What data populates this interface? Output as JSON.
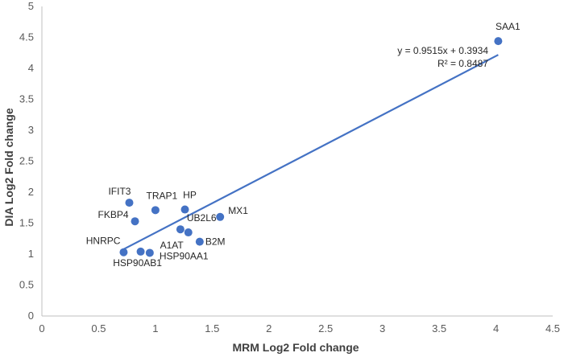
{
  "chart_data": {
    "type": "scatter",
    "xlabel": "MRM Log2 Fold change",
    "ylabel": "DIA Log2 Fold change",
    "xlim": [
      0,
      4.5
    ],
    "ylim": [
      0,
      5
    ],
    "x_ticks": [
      "0",
      "0.5",
      "1",
      "1.5",
      "2",
      "2.5",
      "3",
      "3.5",
      "4",
      "4.5"
    ],
    "y_ticks": [
      "0",
      "0.5",
      "1",
      "1.5",
      "2",
      "2.5",
      "3",
      "3.5",
      "4",
      "4.5",
      "5"
    ],
    "grid": false,
    "marker_color": "#4472C4",
    "trendline_color": "#4472C4",
    "points": [
      {
        "label": "SAA1",
        "x": 4.02,
        "y": 4.44
      },
      {
        "label": "IFIT3",
        "x": 0.77,
        "y": 1.83
      },
      {
        "label": "TRAP1",
        "x": 1.0,
        "y": 1.71
      },
      {
        "label": "HP",
        "x": 1.26,
        "y": 1.72
      },
      {
        "label": "MX1",
        "x": 1.57,
        "y": 1.6
      },
      {
        "label": "FKBP4",
        "x": 0.82,
        "y": 1.53
      },
      {
        "label": "UB2L6",
        "x": 1.22,
        "y": 1.4
      },
      {
        "label": "A1AT",
        "x": 1.29,
        "y": 1.35
      },
      {
        "label": "B2M",
        "x": 1.39,
        "y": 1.2
      },
      {
        "label": "HNRPC",
        "x": 0.72,
        "y": 1.03
      },
      {
        "label": "HSP90AB1",
        "x": 0.87,
        "y": 1.04
      },
      {
        "label": "HSP90AA1",
        "x": 0.95,
        "y": 1.02
      }
    ],
    "trendline": {
      "slope": 0.9515,
      "intercept": 0.3934,
      "x_range": [
        0.72,
        4.02
      ]
    },
    "equation_text": "y = 0.9515x + 0.3934",
    "r2_text": "R² = 0.8487"
  }
}
